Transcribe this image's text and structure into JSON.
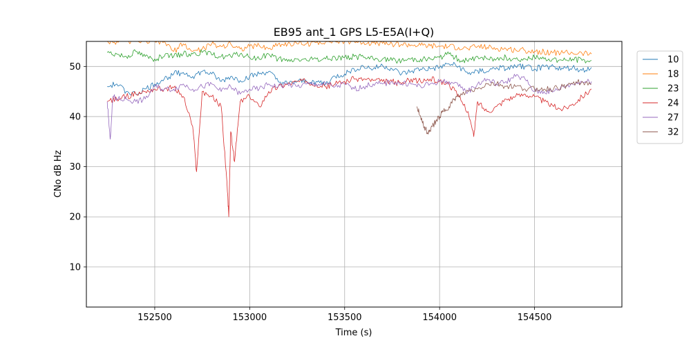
{
  "chart_data": {
    "type": "line",
    "title": "EB95 ant_1 GPS L5-E5A(I+Q)",
    "xlabel": "Time (s)",
    "ylabel": "CNo dB Hz",
    "xlim": [
      152140,
      154960
    ],
    "ylim": [
      2,
      55
    ],
    "xticks": [
      152500,
      153000,
      153500,
      154000,
      154500
    ],
    "yticks": [
      10,
      20,
      30,
      40,
      50
    ],
    "grid": true,
    "legend_position": "right-outside",
    "series": [
      {
        "name": "10",
        "color": "#1f77b4",
        "x": [
          152250,
          152300,
          152350,
          152400,
          152450,
          152500,
          152550,
          152600,
          152650,
          152700,
          152750,
          152800,
          152850,
          152900,
          152950,
          153000,
          153050,
          153100,
          153150,
          153200,
          153250,
          153300,
          153350,
          153400,
          153450,
          153500,
          153550,
          153600,
          153650,
          153700,
          153750,
          153800,
          153850,
          153900,
          153950,
          154000,
          154050,
          154100,
          154150,
          154200,
          154250,
          154300,
          154350,
          154400,
          154450,
          154500,
          154550,
          154600,
          154650,
          154700,
          154750,
          154800
        ],
        "y": [
          46,
          46.5,
          45,
          44.5,
          45.5,
          46.5,
          47.5,
          48.5,
          48.8,
          48,
          49,
          48.5,
          47,
          48,
          47.2,
          48,
          48.5,
          49,
          47,
          46.5,
          47,
          47,
          47,
          46.5,
          48,
          48.5,
          49.5,
          50,
          49.5,
          50.2,
          49.5,
          48.5,
          49,
          49.5,
          49.5,
          49.8,
          50.5,
          50,
          48.5,
          49.2,
          49,
          49.8,
          49.5,
          50,
          50,
          49.5,
          50,
          50,
          49.5,
          49.8,
          49.2,
          49.8
        ]
      },
      {
        "name": "18",
        "color": "#ff7f0e",
        "x": [
          152250,
          152300,
          152350,
          152400,
          152450,
          152500,
          152550,
          152600,
          152650,
          152700,
          152750,
          152800,
          152850,
          152900,
          152950,
          153000,
          153050,
          153100,
          153150,
          153200,
          153250,
          153300,
          153350,
          153400,
          153450,
          153500,
          153550,
          153600,
          153650,
          153700,
          153750,
          153800,
          153850,
          153900,
          153950,
          154000,
          154050,
          154100,
          154150,
          154200,
          154250,
          154300,
          154350,
          154400,
          154450,
          154500,
          154550,
          154600,
          154650,
          154700,
          154750,
          154800
        ],
        "y": [
          55,
          55,
          55,
          55,
          55,
          55,
          55,
          53,
          54.5,
          53,
          53.5,
          54.5,
          54,
          54.5,
          53.5,
          54,
          54.2,
          53.5,
          54.5,
          54.5,
          54.5,
          54.5,
          54.8,
          55,
          55,
          55,
          55,
          54.8,
          54.7,
          54.6,
          54.5,
          54.4,
          54.3,
          54.2,
          54.1,
          54,
          54,
          53.8,
          53.5,
          54,
          53.8,
          53.6,
          53.5,
          53.3,
          53.2,
          53,
          52.9,
          52.8,
          52.7,
          52.7,
          52.6,
          52.5
        ]
      },
      {
        "name": "23",
        "color": "#2ca02c",
        "x": [
          152250,
          152300,
          152350,
          152400,
          152450,
          152500,
          152550,
          152600,
          152650,
          152700,
          152750,
          152800,
          152850,
          152900,
          152950,
          153000,
          153050,
          153100,
          153150,
          153200,
          153250,
          153300,
          153350,
          153400,
          153450,
          153500,
          153550,
          153600,
          153650,
          153700,
          153750,
          153800,
          153850,
          153900,
          153950,
          154000,
          154050,
          154100,
          154150,
          154200,
          154250,
          154300,
          154350,
          154400,
          154450,
          154500,
          154550,
          154600,
          154650,
          154700,
          154750,
          154800
        ],
        "y": [
          52.8,
          52.5,
          52,
          53,
          52,
          51.5,
          52,
          52,
          52.5,
          52.5,
          52.8,
          52.3,
          52,
          52,
          52.5,
          51.8,
          51.5,
          52.5,
          51.5,
          51,
          51.5,
          51.2,
          51.5,
          51.5,
          51.8,
          51.8,
          52,
          51.8,
          51.5,
          51.5,
          51.2,
          51.2,
          51.5,
          51.5,
          51.5,
          51.8,
          52.5,
          51.5,
          51,
          52,
          51.5,
          51.5,
          51.8,
          51.5,
          51.5,
          51.8,
          51.5,
          51.5,
          51.2,
          51.5,
          51.2,
          51.2
        ]
      },
      {
        "name": "24",
        "color": "#d62728",
        "x": [
          152250,
          152300,
          152350,
          152400,
          152450,
          152500,
          152550,
          152600,
          152650,
          152700,
          152720,
          152750,
          152800,
          152850,
          152880,
          152890,
          152900,
          152920,
          152950,
          153000,
          153050,
          153100,
          153150,
          153200,
          153250,
          153300,
          153350,
          153400,
          153450,
          153500,
          153550,
          153600,
          153650,
          153700,
          153750,
          153800,
          153850,
          153900,
          153950,
          154000,
          154050,
          154100,
          154150,
          154180,
          154200,
          154250,
          154300,
          154350,
          154400,
          154450,
          154500,
          154550,
          154600,
          154650,
          154700,
          154750,
          154800
        ],
        "y": [
          43,
          43.5,
          44,
          44.5,
          45,
          45.5,
          45.5,
          45.8,
          44,
          38,
          29,
          45,
          44,
          42,
          27,
          20,
          37,
          31,
          43,
          44,
          42,
          45,
          46,
          46.5,
          47,
          47,
          46.5,
          46,
          46.5,
          47,
          47.5,
          47.5,
          47.2,
          47,
          47,
          46.5,
          47.5,
          47,
          47.5,
          47,
          46.5,
          44,
          41,
          36,
          43,
          41,
          42,
          43.5,
          44,
          44.5,
          44,
          43,
          42,
          41.5,
          42.5,
          44,
          45.5
        ]
      },
      {
        "name": "27",
        "color": "#9467bd",
        "x": [
          152250,
          152265,
          152280,
          152300,
          152350,
          152400,
          152450,
          152500,
          152550,
          152600,
          152650,
          152700,
          152750,
          152800,
          152850,
          152900,
          152950,
          153000,
          153050,
          153100,
          153150,
          153200,
          153250,
          153300,
          153350,
          153400,
          153450,
          153500,
          153550,
          153600,
          153650,
          153700,
          153750,
          153800,
          153850,
          153900,
          153950,
          154000,
          154050,
          154100,
          154150,
          154200,
          154250,
          154300,
          154350,
          154400,
          154450,
          154500,
          154550,
          154600,
          154650,
          154700,
          154750,
          154800
        ],
        "y": [
          43,
          35.5,
          44,
          43.5,
          43.5,
          43,
          43.5,
          46,
          45.5,
          45.5,
          46.5,
          45.5,
          46,
          46.5,
          45,
          46,
          44.5,
          45.5,
          45.5,
          46.5,
          46,
          46.5,
          46,
          46.5,
          46.5,
          46.5,
          46,
          46.5,
          45.5,
          46,
          46.5,
          46.5,
          47,
          46.5,
          46.5,
          46,
          46.5,
          47,
          47,
          46,
          45,
          46.5,
          47.5,
          46.5,
          47,
          48,
          47.5,
          45,
          45,
          45,
          46,
          46.5,
          47,
          47
        ]
      },
      {
        "name": "32",
        "color": "#8c564b",
        "x": [
          153880,
          153900,
          153920,
          153940,
          153960,
          153980,
          154000,
          154020,
          154050,
          154080,
          154100,
          154150,
          154200,
          154250,
          154300,
          154350,
          154400,
          154450,
          154500,
          154550,
          154600,
          154650,
          154700,
          154750,
          154800
        ],
        "y": [
          42,
          40,
          38,
          36.5,
          38,
          39,
          40,
          41,
          42,
          43.5,
          44,
          45,
          45.5,
          46.5,
          46.5,
          46,
          46,
          45.5,
          45.5,
          45.5,
          45.5,
          46,
          46.5,
          47,
          46.5
        ]
      }
    ]
  }
}
